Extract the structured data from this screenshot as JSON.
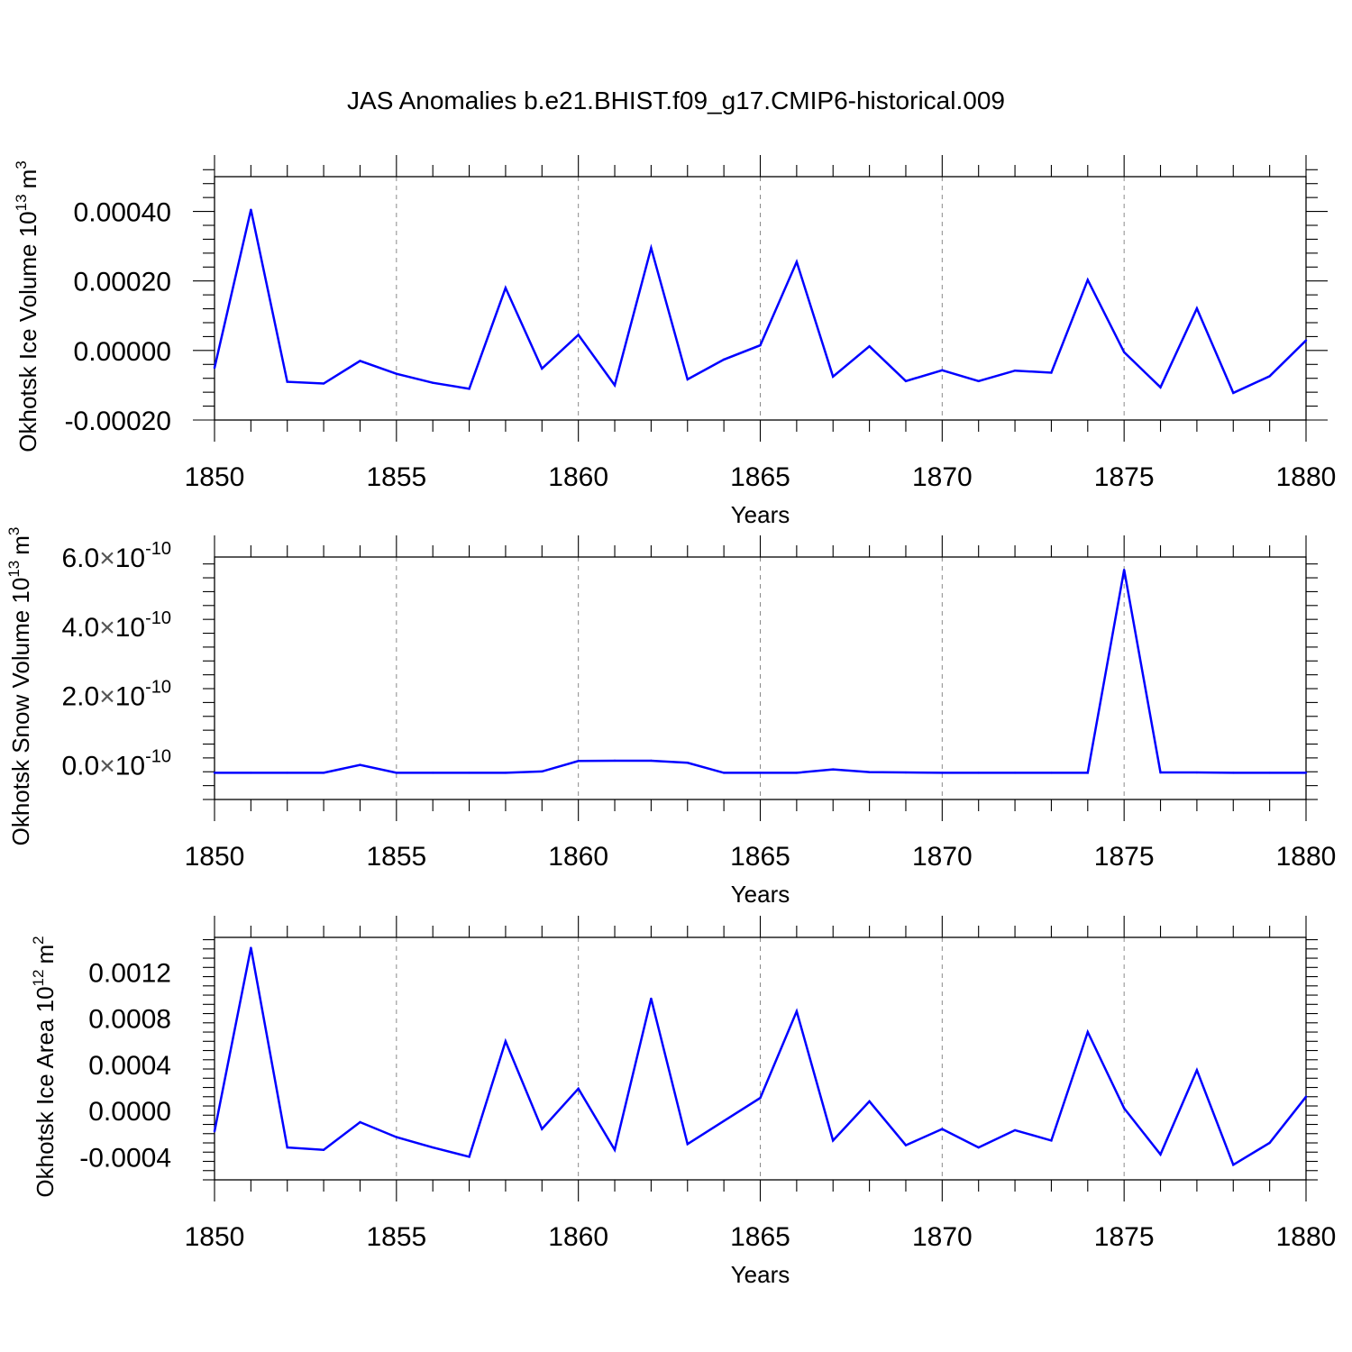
{
  "chart_data": [
    {
      "type": "line",
      "title": "JAS Anomalies b.e21.BHIST.f09_g17.CMIP6-historical.009",
      "xlabel": "Years",
      "ylabel": "Okhotsk Ice Volume 10",
      "ylabel_sup": "13",
      "ylabel_unit": "m",
      "ylabel_unit_sup": "3",
      "xlim": [
        1850,
        1880
      ],
      "ylim": [
        -0.0002,
        0.0005
      ],
      "xticks": [
        1850,
        1855,
        1860,
        1865,
        1870,
        1875,
        1880
      ],
      "xtick_labels": [
        "1850",
        "1855",
        "1860",
        "1865",
        "1870",
        "1875",
        "1880"
      ],
      "yticks": [
        {
          "value": -0.0002,
          "label": "-0.00020"
        },
        {
          "value": 0.0,
          "label": "0.00000"
        },
        {
          "value": 0.0002,
          "label": "0.00020"
        },
        {
          "value": 0.0004,
          "label": "0.00040"
        }
      ],
      "grid": "dashed vertical at major x ticks",
      "color": "#0000ff",
      "series": [
        {
          "name": "Okhotsk Ice Volume",
          "x": [
            1850,
            1851,
            1852,
            1853,
            1854,
            1855,
            1856,
            1857,
            1858,
            1859,
            1860,
            1861,
            1862,
            1863,
            1864,
            1865,
            1866,
            1867,
            1868,
            1869,
            1870,
            1871,
            1872,
            1873,
            1874,
            1875,
            1876,
            1877,
            1878,
            1879,
            1880
          ],
          "values": [
            -5e-05,
            0.000405,
            -9e-05,
            -9.5e-05,
            -3e-05,
            -6.7e-05,
            -9.3e-05,
            -0.00011,
            0.00018,
            -5.2e-05,
            4.5e-05,
            -0.0001,
            0.000295,
            -8.3e-05,
            -2.6e-05,
            1.5e-05,
            0.000255,
            -7.5e-05,
            1.2e-05,
            -8.8e-05,
            -5.7e-05,
            -8.8e-05,
            -5.8e-05,
            -6.4e-05,
            0.000203,
            -5e-06,
            -0.000106,
            0.000121,
            -0.000122,
            -7.4e-05,
            2.9e-05
          ]
        }
      ]
    },
    {
      "type": "line",
      "xlabel": "Years",
      "ylabel": "Okhotsk Snow Volume 10",
      "ylabel_sup": "13",
      "ylabel_unit": "m",
      "ylabel_unit_sup": "3",
      "xlim": [
        1850,
        1880
      ],
      "ylim": [
        -1e-10,
        6e-10
      ],
      "xticks": [
        1850,
        1855,
        1860,
        1865,
        1870,
        1875,
        1880
      ],
      "xtick_labels": [
        "1850",
        "1855",
        "1860",
        "1865",
        "1870",
        "1875",
        "1880"
      ],
      "yticks": [
        {
          "value": 0.0,
          "mantissa": "0.0",
          "times": "×",
          "base": "10",
          "exponent": "-10"
        },
        {
          "value": 2e-10,
          "mantissa": "2.0",
          "times": "×",
          "base": "10",
          "exponent": "-10"
        },
        {
          "value": 4e-10,
          "mantissa": "4.0",
          "times": "×",
          "base": "10",
          "exponent": "-10"
        },
        {
          "value": 6e-10,
          "mantissa": "6.0",
          "times": "×",
          "base": "10",
          "exponent": "-10"
        }
      ],
      "grid": "dashed vertical at major x ticks",
      "color": "#0000ff",
      "series": [
        {
          "name": "Okhotsk Snow Volume",
          "x": [
            1850,
            1851,
            1852,
            1853,
            1854,
            1855,
            1856,
            1857,
            1858,
            1859,
            1860,
            1861,
            1862,
            1863,
            1864,
            1865,
            1866,
            1867,
            1868,
            1869,
            1870,
            1871,
            1872,
            1873,
            1874,
            1875,
            1876,
            1877,
            1878,
            1879,
            1880
          ],
          "values": [
            -2.3e-11,
            -2.3e-11,
            -2.3e-11,
            -2.3e-11,
            0.0,
            -2.3e-11,
            -2.3e-11,
            -2.3e-11,
            -2.3e-11,
            -1.9e-11,
            1.1e-11,
            1.2e-11,
            1.2e-11,
            6e-12,
            -2.3e-11,
            -2.3e-11,
            -2.3e-11,
            -1.3e-11,
            -2.1e-11,
            -2.2e-11,
            -2.3e-11,
            -2.3e-11,
            -2.3e-11,
            -2.3e-11,
            -2.3e-11,
            5.63e-10,
            -2.2e-11,
            -2.2e-11,
            -2.3e-11,
            -2.3e-11,
            -2.3e-11
          ]
        }
      ]
    },
    {
      "type": "line",
      "xlabel": "Years",
      "ylabel": "Okhotsk Ice Area 10",
      "ylabel_sup": "12",
      "ylabel_unit": "m",
      "ylabel_unit_sup": "2",
      "xlim": [
        1850,
        1880
      ],
      "ylim": [
        -0.0006,
        0.0015
      ],
      "xticks": [
        1850,
        1855,
        1860,
        1865,
        1870,
        1875,
        1880
      ],
      "xtick_labels": [
        "1850",
        "1855",
        "1860",
        "1865",
        "1870",
        "1875",
        "1880"
      ],
      "yticks": [
        {
          "value": -0.0004,
          "label": "-0.0004"
        },
        {
          "value": 0.0,
          "label": "0.0000"
        },
        {
          "value": 0.0004,
          "label": "0.0004"
        },
        {
          "value": 0.0008,
          "label": "0.0008"
        },
        {
          "value": 0.0012,
          "label": "0.0012"
        }
      ],
      "grid": "dashed vertical at major x ticks",
      "color": "#0000ff",
      "series": [
        {
          "name": "Okhotsk Ice Area",
          "x": [
            1850,
            1851,
            1852,
            1853,
            1854,
            1855,
            1856,
            1857,
            1858,
            1859,
            1860,
            1861,
            1862,
            1863,
            1864,
            1865,
            1866,
            1867,
            1868,
            1869,
            1870,
            1871,
            1872,
            1873,
            1874,
            1875,
            1876,
            1877,
            1878,
            1879,
            1880
          ],
          "values": [
            -0.00018,
            0.00141,
            -0.00032,
            -0.00034,
            -0.0001,
            -0.00023,
            -0.00032,
            -0.0004,
            0.0006,
            -0.00016,
            0.00019,
            -0.00034,
            0.00097,
            -0.00029,
            -9e-05,
            0.00011,
            0.00086,
            -0.00026,
            8e-05,
            -0.0003,
            -0.00016,
            -0.00032,
            -0.00017,
            -0.00026,
            0.00068,
            2e-05,
            -0.00038,
            0.00035,
            -0.00047,
            -0.00028,
            0.00012
          ]
        }
      ]
    }
  ]
}
